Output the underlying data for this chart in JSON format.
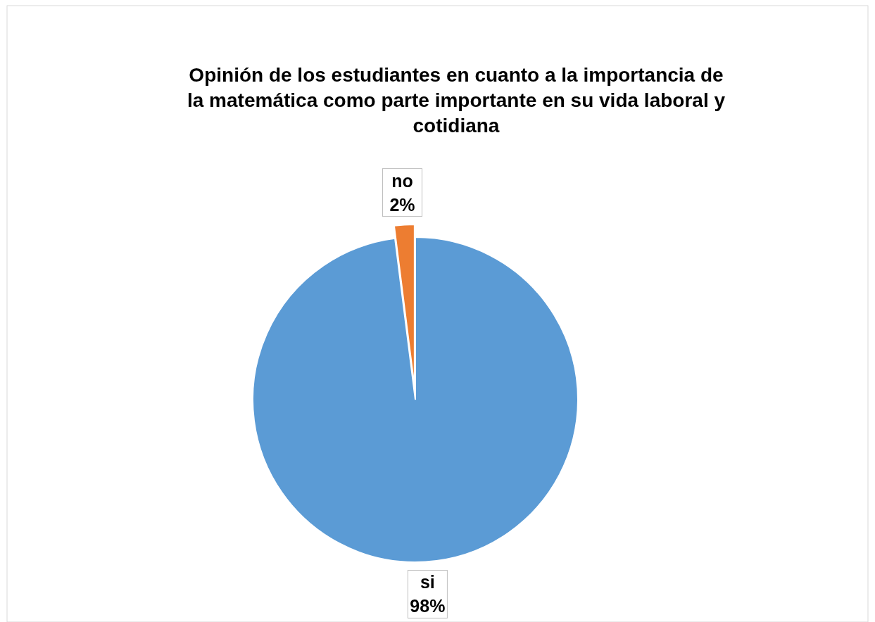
{
  "chart_data": {
    "type": "pie",
    "title": "Opinión de los estudiantes en cuanto a la importancia de la matemática como parte importante en su vida laboral y cotidiana",
    "categories": [
      "si",
      "no"
    ],
    "values": [
      98,
      2
    ],
    "colors": [
      "#5b9bd5",
      "#ed7d31"
    ],
    "value_labels": [
      "98%",
      "2%"
    ]
  }
}
